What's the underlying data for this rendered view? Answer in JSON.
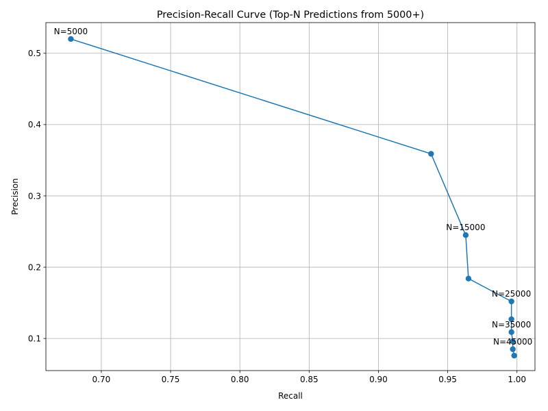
{
  "chart_data": {
    "type": "line",
    "title": "Precision-Recall Curve (Top-N Predictions from 5000+)",
    "xlabel": "Recall",
    "ylabel": "Precision",
    "xlim": [
      0.66,
      1.013
    ],
    "ylim": [
      0.055,
      0.543
    ],
    "grid": true,
    "color": "#1f77b4",
    "marker": "circle",
    "xticks": [
      0.7,
      0.75,
      0.8,
      0.85,
      0.9,
      0.95,
      1.0
    ],
    "xtick_labels": [
      "0.70",
      "0.75",
      "0.80",
      "0.85",
      "0.90",
      "0.95",
      "1.00"
    ],
    "yticks": [
      0.1,
      0.2,
      0.3,
      0.4,
      0.5
    ],
    "ytick_labels": [
      "0.1",
      "0.2",
      "0.3",
      "0.4",
      "0.5"
    ],
    "series": [
      {
        "x": [
          0.678,
          0.938,
          0.963,
          0.965,
          0.996,
          0.996,
          0.996,
          0.997,
          0.997,
          0.998
        ],
        "y": [
          0.52,
          0.359,
          0.245,
          0.184,
          0.152,
          0.127,
          0.109,
          0.096,
          0.085,
          0.076
        ]
      }
    ],
    "annotations": [
      {
        "text": "N=5000",
        "x": 0.678,
        "y": 0.52
      },
      {
        "text": "N=15000",
        "x": 0.963,
        "y": 0.245
      },
      {
        "text": "N=25000",
        "x": 0.996,
        "y": 0.152
      },
      {
        "text": "N=35000",
        "x": 0.996,
        "y": 0.109
      },
      {
        "text": "N=45000",
        "x": 0.997,
        "y": 0.085
      }
    ]
  }
}
